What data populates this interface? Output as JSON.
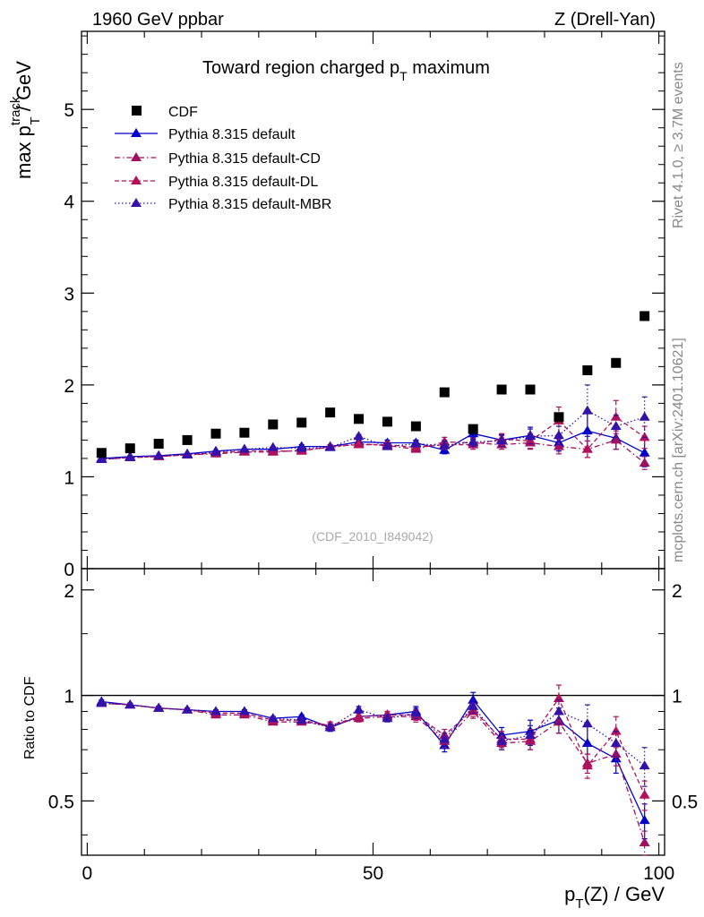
{
  "header": {
    "left": "1960 GeV ppbar",
    "right": "Z (Drell-Yan)"
  },
  "side_labels": {
    "rivet": "Rivet 4.1.0, ≥ 3.7M events",
    "mcplots": "mcplots.cern.ch [arXiv:2401.10621]"
  },
  "colors": {
    "cdf": "#000000",
    "default": "#0000cc",
    "cd": "#a01060",
    "dl": "#b3105a",
    "mbr": "#3311aa"
  },
  "chart_data": [
    {
      "type": "scatter",
      "title": "Toward region charged pT maximum",
      "title_main": "Toward region charged p",
      "title_sub": "T",
      "title_tail": " maximum",
      "ylabel": "max p_T^track / GeV",
      "ylabel_main": "max p",
      "ylabel_sup": "track",
      "ylabel_sub": "T",
      "ylabel_tail": " / GeV",
      "ylim": [
        0,
        5.85
      ],
      "xlim": [
        -1,
        101
      ],
      "yticks": [
        0,
        1,
        2,
        3,
        4,
        5
      ],
      "ytick_labels": [
        "0",
        "1",
        "2",
        "3",
        "4",
        "5"
      ],
      "watermark": "(CDF_2010_I849042)",
      "legend_position": "top-left",
      "x": [
        2.5,
        7.5,
        12.5,
        17.5,
        22.5,
        27.5,
        32.5,
        37.5,
        42.5,
        47.5,
        52.5,
        57.5,
        62.5,
        67.5,
        72.5,
        77.5,
        82.5,
        87.5,
        92.5,
        97.5
      ],
      "series": [
        {
          "name": "CDF",
          "style": "data",
          "values": [
            1.26,
            1.31,
            1.36,
            1.4,
            1.47,
            1.48,
            1.57,
            1.59,
            1.7,
            1.63,
            1.6,
            1.55,
            1.92,
            1.52,
            1.95,
            1.95,
            1.65,
            2.16,
            2.24,
            2.75
          ]
        },
        {
          "name": "Pythia 8.315 default",
          "style": "solid",
          "values": [
            1.2,
            1.22,
            1.23,
            1.25,
            1.28,
            1.3,
            1.3,
            1.33,
            1.33,
            1.38,
            1.37,
            1.37,
            1.29,
            1.47,
            1.4,
            1.45,
            1.37,
            1.5,
            1.42,
            1.26
          ],
          "errors": [
            0.01,
            0.01,
            0.01,
            0.01,
            0.01,
            0.01,
            0.01,
            0.02,
            0.02,
            0.02,
            0.03,
            0.03,
            0.04,
            0.06,
            0.06,
            0.09,
            0.09,
            0.2,
            0.12,
            0.15
          ]
        },
        {
          "name": "Pythia 8.315 default-CD",
          "style": "dashdot",
          "values": [
            1.19,
            1.21,
            1.22,
            1.24,
            1.25,
            1.27,
            1.27,
            1.29,
            1.32,
            1.36,
            1.34,
            1.3,
            1.38,
            1.37,
            1.35,
            1.37,
            1.33,
            1.3,
            1.4,
            1.15
          ],
          "errors": [
            0.01,
            0.01,
            0.01,
            0.01,
            0.01,
            0.01,
            0.01,
            0.02,
            0.02,
            0.02,
            0.03,
            0.03,
            0.05,
            0.05,
            0.05,
            0.07,
            0.08,
            0.09,
            0.1,
            0.07
          ]
        },
        {
          "name": "Pythia 8.315 default-DL",
          "style": "dashed",
          "values": [
            1.19,
            1.21,
            1.22,
            1.24,
            1.26,
            1.28,
            1.28,
            1.28,
            1.33,
            1.35,
            1.35,
            1.32,
            1.35,
            1.35,
            1.41,
            1.39,
            1.61,
            1.3,
            1.65,
            1.43
          ],
          "errors": [
            0.01,
            0.01,
            0.01,
            0.01,
            0.01,
            0.01,
            0.01,
            0.02,
            0.02,
            0.02,
            0.03,
            0.03,
            0.05,
            0.05,
            0.06,
            0.08,
            0.15,
            0.09,
            0.18,
            0.12
          ]
        },
        {
          "name": "Pythia 8.315 default-MBR",
          "style": "dotted",
          "values": [
            1.19,
            1.21,
            1.23,
            1.24,
            1.27,
            1.3,
            1.32,
            1.31,
            1.32,
            1.44,
            1.33,
            1.36,
            1.34,
            1.38,
            1.39,
            1.44,
            1.45,
            1.72,
            1.55,
            1.65
          ],
          "errors": [
            0.01,
            0.01,
            0.01,
            0.01,
            0.01,
            0.01,
            0.01,
            0.02,
            0.02,
            0.02,
            0.03,
            0.03,
            0.05,
            0.05,
            0.06,
            0.08,
            0.1,
            0.28,
            0.12,
            0.22
          ]
        }
      ]
    },
    {
      "type": "scatter",
      "title": "",
      "ylabel": "Ratio to CDF",
      "xlabel": "p_T(Z) / GeV",
      "xlabel_main": "p",
      "xlabel_sub": "T",
      "xlabel_tail": "(Z) / GeV",
      "ylim": [
        0.35,
        2.3
      ],
      "yscale": "log",
      "yticks": [
        0.5,
        1,
        2
      ],
      "ytick_labels": [
        "0.5",
        "1",
        "2"
      ],
      "xlim": [
        -1,
        101
      ],
      "xticks": [
        0,
        50,
        100
      ],
      "xtick_labels": [
        "0",
        "50",
        "100"
      ],
      "reference": 1,
      "x": [
        2.5,
        7.5,
        12.5,
        17.5,
        22.5,
        27.5,
        32.5,
        37.5,
        42.5,
        47.5,
        52.5,
        57.5,
        62.5,
        67.5,
        72.5,
        77.5,
        82.5,
        87.5,
        92.5,
        97.5
      ],
      "series": [
        {
          "name": "Pythia 8.315 default",
          "style": "solid",
          "values": [
            0.96,
            0.94,
            0.92,
            0.91,
            0.9,
            0.9,
            0.86,
            0.87,
            0.81,
            0.87,
            0.88,
            0.9,
            0.72,
            0.97,
            0.77,
            0.79,
            0.85,
            0.73,
            0.66,
            0.44
          ],
          "errors": [
            0.01,
            0.01,
            0.01,
            0.01,
            0.01,
            0.01,
            0.01,
            0.01,
            0.02,
            0.02,
            0.02,
            0.03,
            0.03,
            0.05,
            0.04,
            0.06,
            0.07,
            0.1,
            0.06,
            0.05
          ]
        },
        {
          "name": "Pythia 8.315 default-CD",
          "style": "dashdot",
          "values": [
            0.95,
            0.94,
            0.92,
            0.91,
            0.88,
            0.88,
            0.84,
            0.84,
            0.82,
            0.86,
            0.87,
            0.87,
            0.74,
            0.9,
            0.73,
            0.74,
            0.84,
            0.64,
            0.68,
            0.38
          ],
          "errors": [
            0.01,
            0.01,
            0.01,
            0.01,
            0.01,
            0.01,
            0.01,
            0.01,
            0.02,
            0.02,
            0.02,
            0.03,
            0.03,
            0.04,
            0.03,
            0.04,
            0.06,
            0.04,
            0.05,
            0.03
          ]
        },
        {
          "name": "Pythia 8.315 default-DL",
          "style": "dashed",
          "values": [
            0.95,
            0.94,
            0.92,
            0.91,
            0.89,
            0.89,
            0.85,
            0.85,
            0.82,
            0.87,
            0.88,
            0.88,
            0.77,
            0.91,
            0.75,
            0.75,
            0.98,
            0.63,
            0.79,
            0.52
          ],
          "errors": [
            0.01,
            0.01,
            0.01,
            0.01,
            0.01,
            0.01,
            0.01,
            0.01,
            0.02,
            0.02,
            0.02,
            0.03,
            0.03,
            0.04,
            0.04,
            0.05,
            0.09,
            0.05,
            0.08,
            0.05
          ]
        },
        {
          "name": "Pythia 8.315 default-MBR",
          "style": "dotted",
          "values": [
            0.95,
            0.94,
            0.92,
            0.91,
            0.9,
            0.9,
            0.86,
            0.85,
            0.81,
            0.91,
            0.86,
            0.89,
            0.75,
            0.93,
            0.74,
            0.77,
            0.9,
            0.83,
            0.73,
            0.63
          ],
          "errors": [
            0.01,
            0.01,
            0.01,
            0.01,
            0.01,
            0.01,
            0.01,
            0.01,
            0.02,
            0.02,
            0.02,
            0.03,
            0.03,
            0.04,
            0.04,
            0.05,
            0.07,
            0.11,
            0.06,
            0.08
          ]
        }
      ]
    }
  ]
}
